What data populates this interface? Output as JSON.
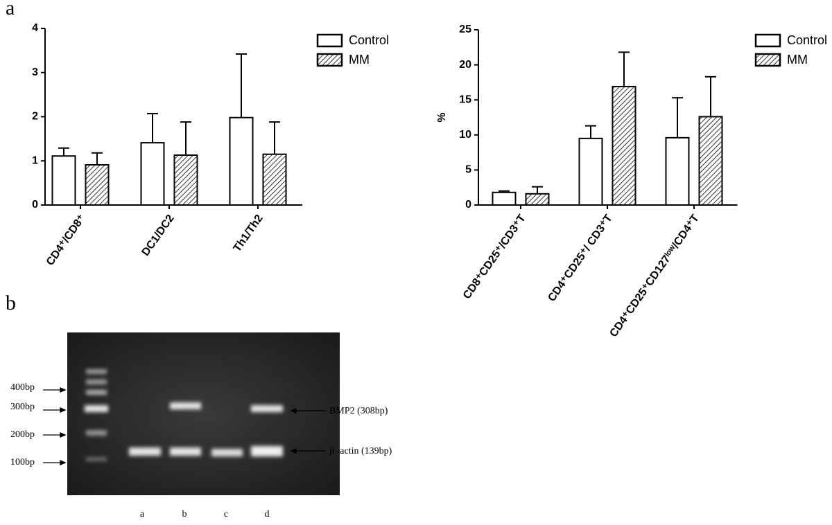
{
  "panel_labels": [
    "a",
    "b"
  ],
  "chart_data": [
    {
      "type": "bar",
      "categories": [
        "CD4⁺/CD8⁺",
        "DC1/DC2",
        "Th1/Th2"
      ],
      "series": [
        {
          "name": "Control",
          "color": "#ffffff",
          "hatch": false,
          "values": [
            1.11,
            1.41,
            1.98
          ],
          "errors": [
            0.18,
            0.66,
            1.44
          ]
        },
        {
          "name": "MM",
          "color": "#ffffff",
          "hatch": true,
          "values": [
            0.91,
            1.13,
            1.15
          ],
          "errors": [
            0.27,
            0.75,
            0.73
          ]
        }
      ],
      "ylim": [
        0,
        4
      ],
      "yticks": [
        0,
        1,
        2,
        3,
        4
      ]
    },
    {
      "type": "bar",
      "ylabel": "%",
      "categories": [
        "CD8⁺CD25⁺/CD3⁺T",
        "CD4⁺CD25⁺/ CD3⁺T",
        "CD4⁺CD25⁺CD127ˡᵒʷ/CD4⁺T"
      ],
      "series": [
        {
          "name": "Control",
          "color": "#ffffff",
          "hatch": false,
          "values": [
            1.8,
            9.5,
            9.6
          ],
          "errors": [
            0.2,
            1.8,
            5.7
          ]
        },
        {
          "name": "MM",
          "color": "#ffffff",
          "hatch": true,
          "values": [
            1.6,
            16.9,
            12.6
          ],
          "errors": [
            1.0,
            4.9,
            5.7
          ]
        }
      ],
      "ylim": [
        0,
        25
      ],
      "yticks": [
        0,
        5,
        10,
        15,
        20,
        25
      ]
    }
  ],
  "gel": {
    "markers": [
      "400bp",
      "300bp",
      "200bp",
      "100bp"
    ],
    "bands": [
      "BMP2 (308bp)",
      "β -actin (139bp)"
    ],
    "lanes": [
      "a",
      "b",
      "c",
      "d"
    ]
  }
}
